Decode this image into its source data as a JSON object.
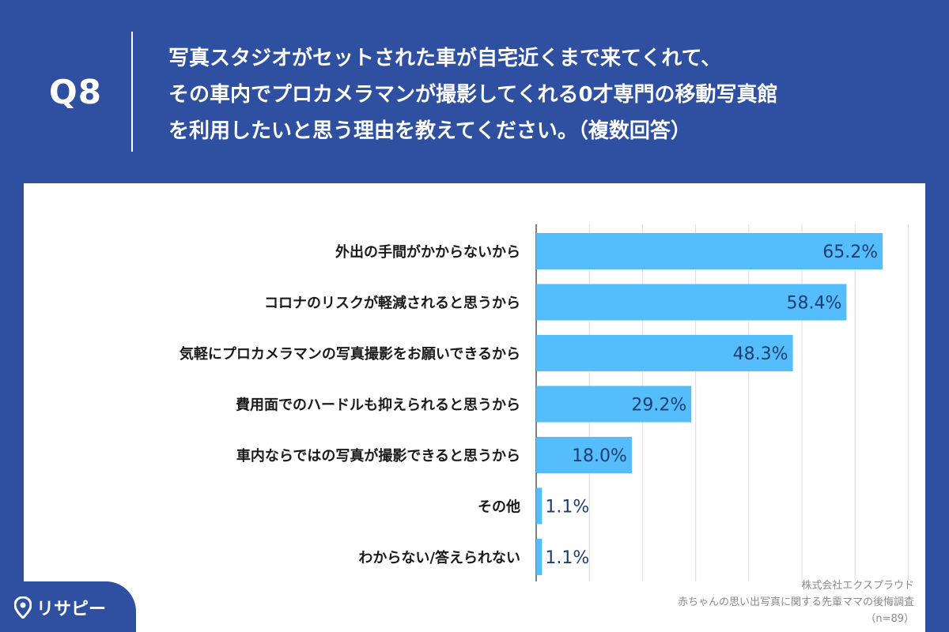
{
  "header": {
    "question_number": "Q8",
    "question_lines": [
      "写真スタジオがセットされた車が自宅近くまで来てくれて、",
      "その車内でプロカメラマンが撮影してくれる0才専門の移動写真館",
      "を利用したいと思う理由を教えてください。（複数回答）"
    ]
  },
  "source": {
    "company": "株式会社エクスプラウド",
    "survey": "赤ちゃんの思い出写真に関する先輩ママの後悔調査",
    "sample": "（n=89）"
  },
  "logo": {
    "text": "リサピー",
    "icon": "location-pin-icon"
  },
  "colors": {
    "background": "#2f4fa0",
    "bar": "#56bdfc",
    "value_text": "#1d3f6e",
    "grid": "#dcdcdc"
  },
  "chart_data": {
    "type": "bar",
    "orientation": "horizontal",
    "categories": [
      "外出の手間がかからないから",
      "コロナのリスクが軽減されると思うから",
      "気軽にプロカメラマンの写真撮影をお願いできるから",
      "費用面でのハードルも抑えられると思うから",
      "車内ならではの写真が撮影できると思うから",
      "その他",
      "わからない/答えられない"
    ],
    "values": [
      65.2,
      58.4,
      48.3,
      29.2,
      18.0,
      1.1,
      1.1
    ],
    "value_labels": [
      "65.2%",
      "58.4%",
      "48.3%",
      "29.2%",
      "18.0%",
      "1.1%",
      "1.1%"
    ],
    "xlim": [
      0,
      70
    ],
    "grid": true
  }
}
